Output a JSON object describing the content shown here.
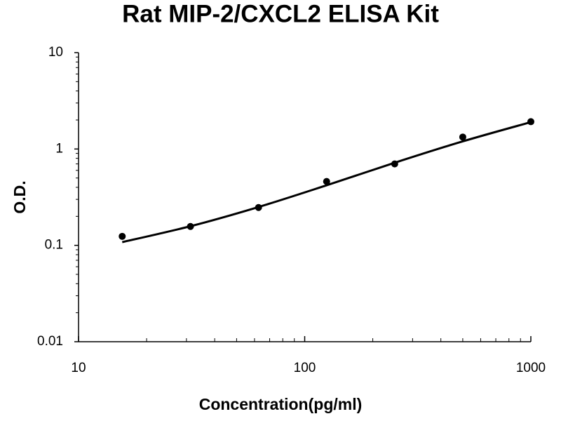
{
  "chart_data": {
    "type": "scatter",
    "title": "Rat MIP-2/CXCL2 ELISA Kit",
    "xlabel": "Concentration(pg/ml)",
    "ylabel": "O.D.",
    "xscale": "log",
    "yscale": "log",
    "xlim": [
      10,
      1000
    ],
    "ylim": [
      0.01,
      10
    ],
    "xticks": [
      10,
      100,
      1000
    ],
    "yticks": [
      0.01,
      0.1,
      1,
      10
    ],
    "grid": false,
    "minor_ticks": true,
    "series": [
      {
        "style": "points",
        "color": "#000000",
        "x": [
          15.6,
          31.25,
          62.5,
          125,
          250,
          500,
          1000
        ],
        "values": [
          0.124,
          0.157,
          0.247,
          0.46,
          0.7,
          1.33,
          1.92
        ]
      },
      {
        "style": "line",
        "color": "#000000",
        "x": [
          15.6,
          31.25,
          62.5,
          125,
          250,
          500,
          1000
        ],
        "values": [
          0.108,
          0.158,
          0.25,
          0.42,
          0.72,
          1.2,
          1.9
        ]
      }
    ]
  }
}
